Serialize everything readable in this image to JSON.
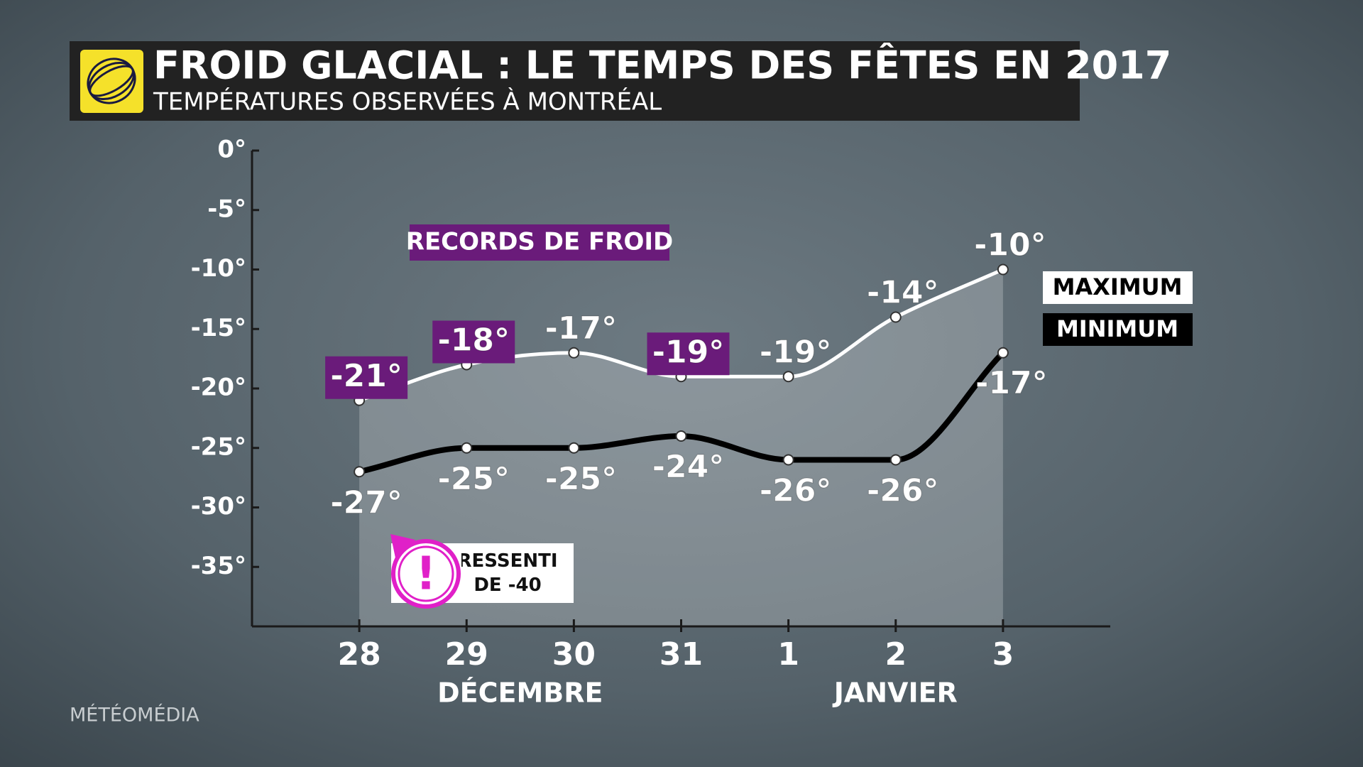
{
  "chart_data": {
    "type": "line",
    "title": "FROID GLACIAL : LE TEMPS DES FÊTES EN 2017",
    "subtitle": "TEMPÉRATURES OBSERVÉES À MONTRÉAL",
    "categories": [
      "28",
      "29",
      "30",
      "31",
      "1",
      "2",
      "3"
    ],
    "x_group_labels": [
      "DÉCEMBRE",
      "JANVIER"
    ],
    "ylim": [
      -40,
      0
    ],
    "yticks": [
      {
        "value": 0,
        "label": "0°"
      },
      {
        "value": -5,
        "label": "-5°"
      },
      {
        "value": -10,
        "label": "-10°"
      },
      {
        "value": -15,
        "label": "-15°"
      },
      {
        "value": -20,
        "label": "-20°"
      },
      {
        "value": -25,
        "label": "-25°"
      },
      {
        "value": -30,
        "label": "-30°"
      },
      {
        "value": -35,
        "label": "-35°"
      }
    ],
    "series": [
      {
        "name": "MAXIMUM",
        "color": "#ffffff",
        "values": [
          -21,
          -18,
          -17,
          -19,
          -19,
          -14,
          -10
        ],
        "value_labels": [
          "-21°",
          "-18°",
          "-17°",
          "-19°",
          "-19°",
          "-14°",
          "-10°"
        ],
        "records": [
          true,
          true,
          false,
          true,
          false,
          false,
          false
        ]
      },
      {
        "name": "MINIMUM",
        "color": "#000000",
        "values": [
          -27,
          -25,
          -25,
          -24,
          -26,
          -26,
          -17
        ],
        "value_labels": [
          "-27°",
          "-25°",
          "-25°",
          "-24°",
          "-26°",
          "-26°",
          "-17°"
        ]
      }
    ],
    "record_label": "RECORDS DE FROID",
    "record_color": "#6a1b7a",
    "callout": "RESSENTI DE -40",
    "source": "MÉTÉOMÉDIA"
  }
}
